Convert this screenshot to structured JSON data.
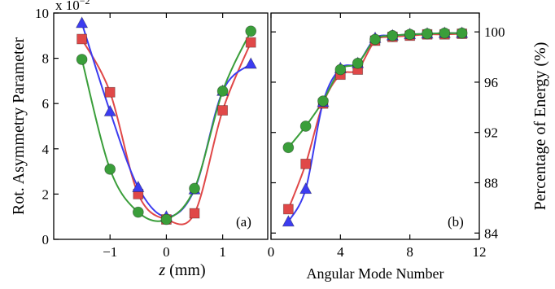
{
  "chart_data": [
    {
      "type": "line",
      "panel_label": "(a)",
      "xlabel_var": "z",
      "xlabel_unit": " (mm)",
      "ylabel": "Rot. Asymmetry Parameter",
      "y_exponent_label": "x 10",
      "y_exponent_power": "−2",
      "xlim": [
        -2.0,
        1.8
      ],
      "ylim": [
        0,
        10
      ],
      "xticks": [
        -1,
        0,
        1
      ],
      "xtick_labels": [
        "−1",
        "0",
        "1"
      ],
      "yticks": [
        0,
        2,
        4,
        6,
        8,
        10
      ],
      "ytick_labels": [
        "0",
        "2",
        "4",
        "6",
        "8",
        "10"
      ],
      "grid": false,
      "series": [
        {
          "color": "#e04848",
          "marker": "square",
          "x": [
            -1.5,
            -1.0,
            -0.5,
            0.0,
            0.5,
            1.0,
            1.5
          ],
          "y": [
            8.85,
            6.5,
            2.0,
            0.88,
            1.15,
            5.7,
            8.7
          ]
        },
        {
          "color": "#3c3cf0",
          "marker": "triangle",
          "x": [
            -1.5,
            -1.0,
            -0.5,
            0.0,
            0.5,
            1.0,
            1.5
          ],
          "y": [
            9.55,
            5.65,
            2.3,
            1.0,
            2.2,
            6.55,
            7.75
          ]
        },
        {
          "color": "#3a9e3a",
          "marker": "circle",
          "x": [
            -1.5,
            -1.0,
            -0.5,
            0.0,
            0.5,
            1.0,
            1.5
          ],
          "y": [
            7.95,
            3.1,
            1.2,
            0.88,
            2.25,
            6.55,
            9.2
          ]
        }
      ]
    },
    {
      "type": "line",
      "panel_label": "(b)",
      "xlabel": "Angular Mode Number",
      "ylabel": "Percentage of Energy (%)",
      "xlim": [
        0,
        12
      ],
      "ylim": [
        83.5,
        101.5
      ],
      "xticks": [
        0,
        4,
        8,
        12
      ],
      "xtick_labels": [
        "0",
        "4",
        "8",
        "12"
      ],
      "yticks": [
        84,
        88,
        92,
        96,
        100
      ],
      "ytick_labels": [
        "84",
        "88",
        "92",
        "96",
        "100"
      ],
      "grid": false,
      "series": [
        {
          "color": "#e04848",
          "marker": "square",
          "x": [
            1,
            2,
            3,
            4,
            5,
            6,
            7,
            8,
            9,
            10,
            11
          ],
          "y": [
            85.9,
            89.5,
            94.3,
            96.6,
            97.0,
            99.3,
            99.6,
            99.7,
            99.8,
            99.8,
            99.85
          ]
        },
        {
          "color": "#3c3cf0",
          "marker": "triangle",
          "x": [
            1,
            2,
            3,
            4,
            5,
            6,
            7,
            8,
            9,
            10,
            11
          ],
          "y": [
            84.9,
            87.5,
            94.4,
            97.1,
            97.5,
            99.5,
            99.7,
            99.8,
            99.85,
            99.9,
            99.9
          ]
        },
        {
          "color": "#3a9e3a",
          "marker": "circle",
          "x": [
            1,
            2,
            3,
            4,
            5,
            6,
            7,
            8,
            9,
            10,
            11
          ],
          "y": [
            90.8,
            92.5,
            94.5,
            97.0,
            97.5,
            99.4,
            99.7,
            99.8,
            99.85,
            99.9,
            99.9
          ]
        }
      ]
    }
  ]
}
